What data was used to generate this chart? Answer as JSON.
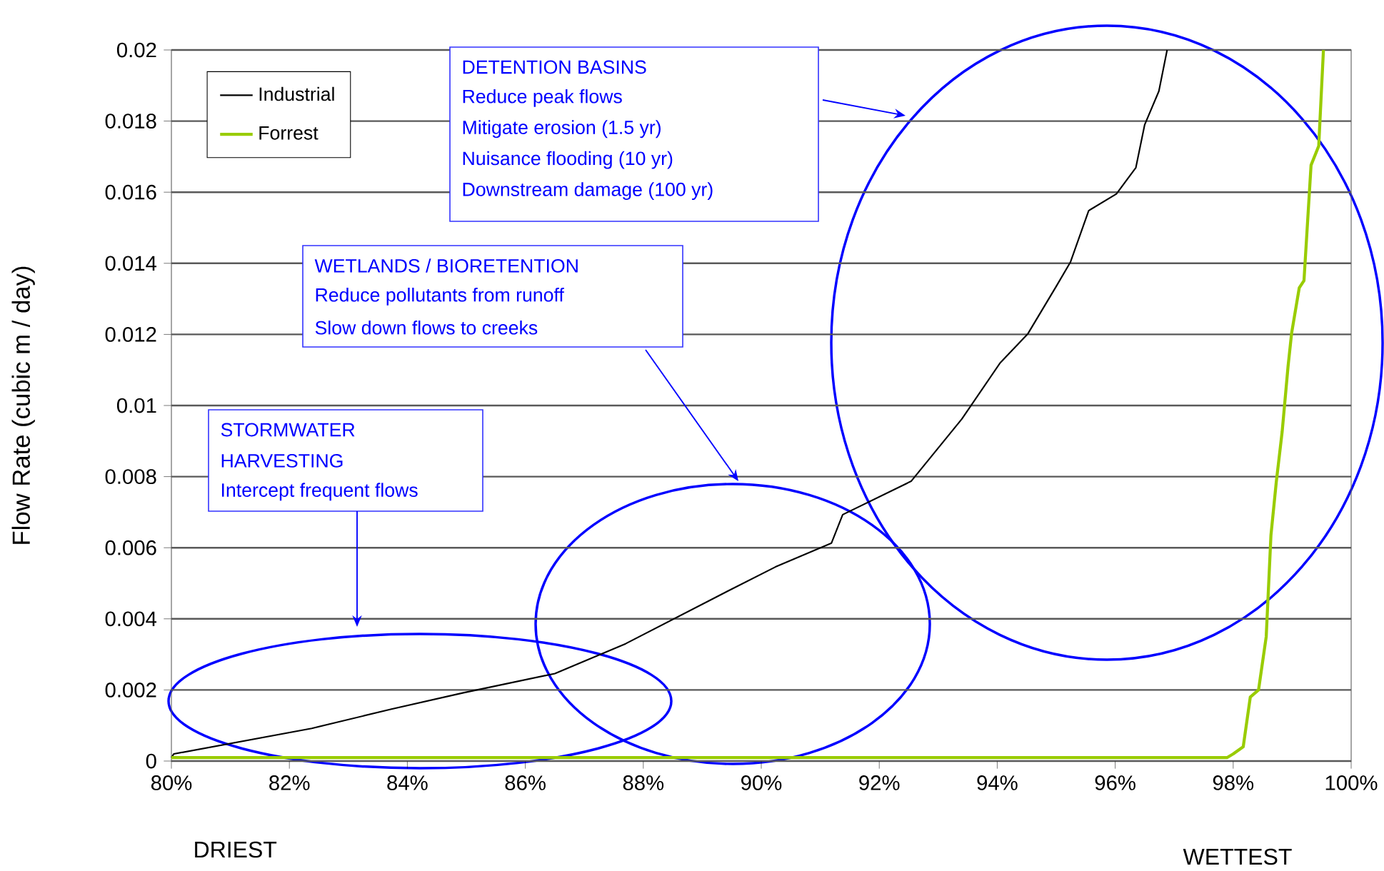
{
  "chart_data": {
    "type": "line",
    "ylabel": "Flow Rate (cubic m / day)",
    "x": [
      80,
      80.04,
      82.38,
      83.73,
      84.95,
      86.5,
      87.7,
      89.29,
      90.24,
      91.19,
      91.38,
      92.54,
      93.4,
      94.05,
      94.52,
      95.0,
      95.24,
      95.55,
      96.02,
      96.35,
      96.5,
      96.74,
      96.88
    ],
    "series": [
      {
        "name": "Industrial",
        "color": "#000000",
        "values": [
          0.0001,
          0.0002,
          0.00092,
          0.00146,
          0.00192,
          0.00246,
          0.0033,
          0.00466,
          0.00546,
          0.00613,
          0.00693,
          0.00787,
          0.00962,
          0.0112,
          0.01202,
          0.01335,
          0.01403,
          0.01548,
          0.01595,
          0.01669,
          0.0179,
          0.01884,
          0.02
        ]
      },
      {
        "name": "Forrest",
        "color": "#99cc00",
        "x": [
          80,
          90,
          97.9,
          98,
          98.17,
          98.29,
          98.43,
          98.56,
          98.64,
          98.73,
          98.83,
          98.93,
          98.99,
          99.12,
          99.2,
          99.32,
          99.45,
          99.53
        ],
        "values": [
          0.0001,
          0.0001,
          0.0001,
          0.0002,
          0.0004,
          0.0018,
          0.002,
          0.0035,
          0.00635,
          0.00784,
          0.00926,
          0.0111,
          0.01203,
          0.01331,
          0.01351,
          0.01676,
          0.0173,
          0.02
        ]
      }
    ],
    "xlim": [
      80,
      100
    ],
    "xticks": [
      {
        "value": 80,
        "label": "80%"
      },
      {
        "value": 82,
        "label": "82%"
      },
      {
        "value": 84,
        "label": "84%"
      },
      {
        "value": 86,
        "label": "86%"
      },
      {
        "value": 88,
        "label": "88%"
      },
      {
        "value": 90,
        "label": "90%"
      },
      {
        "value": 92,
        "label": "92%"
      },
      {
        "value": 94,
        "label": "94%"
      },
      {
        "value": 96,
        "label": "96%"
      },
      {
        "value": 98,
        "label": "98%"
      },
      {
        "value": 100,
        "label": "100%"
      }
    ],
    "ylim": [
      0,
      0.02
    ],
    "yticks": [
      0,
      0.002,
      0.004,
      0.006,
      0.008,
      0.01,
      0.012,
      0.014,
      0.016,
      0.018,
      0.02
    ],
    "grid": "y",
    "legend": "top left",
    "marker": "none",
    "annotations": [
      "DETENTION BASINS",
      "Reduce peak flows",
      "Mitigate erosion (1.5 yr)",
      "Nuisance flooding (10 yr)",
      "Downstream damage (100 yr)",
      "WETLANDS / BIORETENTION",
      "Reduce pollutants from runoff",
      "Slow down flows to creeks",
      "STORMWATER",
      "HARVESTING",
      "Intercept frequent flows",
      "DRIEST",
      "WETTEST"
    ]
  }
}
